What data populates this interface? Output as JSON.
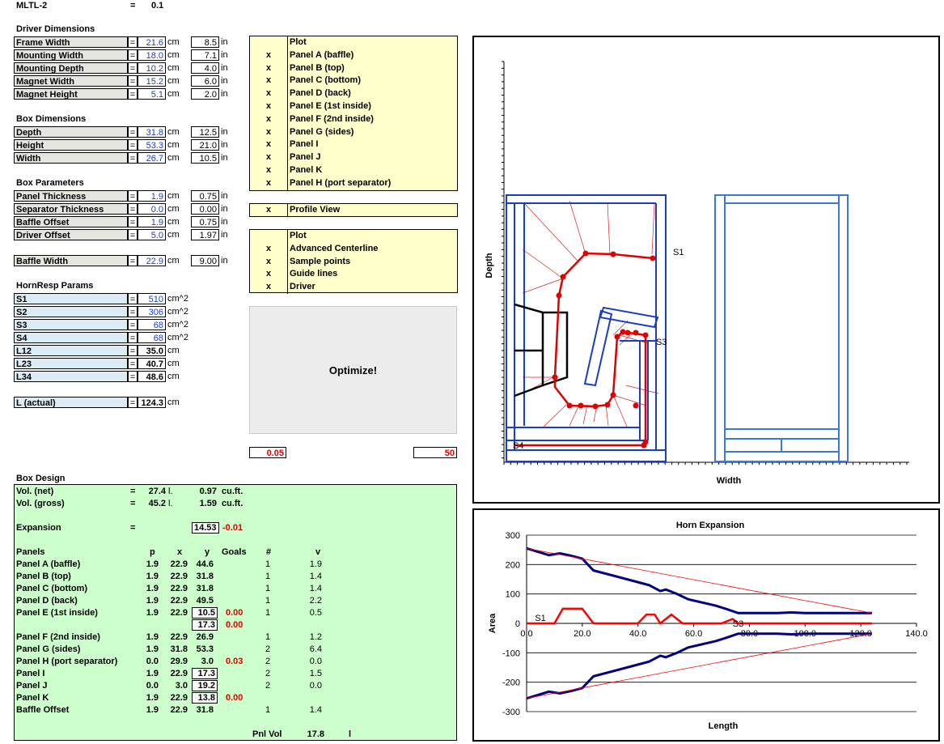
{
  "header": {
    "title": "MLTL-2",
    "eq": "=",
    "value": "0.1"
  },
  "driver": {
    "heading": "Driver Dimensions",
    "rows": [
      {
        "label": "Frame Width",
        "cm": "21.6",
        "in": "8.5"
      },
      {
        "label": "Mounting Width",
        "cm": "18.0",
        "in": "7.1"
      },
      {
        "label": "Mounting Depth",
        "cm": "10.2",
        "in": "4.0"
      },
      {
        "label": "Magnet Width",
        "cm": "15.2",
        "in": "6.0"
      },
      {
        "label": "Magnet Height",
        "cm": "5.1",
        "in": "2.0"
      }
    ]
  },
  "box_dims": {
    "heading": "Box Dimensions",
    "rows": [
      {
        "label": "Depth",
        "cm": "31.8",
        "in": "12.5"
      },
      {
        "label": "Height",
        "cm": "53.3",
        "in": "21.0"
      },
      {
        "label": "Width",
        "cm": "26.7",
        "in": "10.5"
      }
    ]
  },
  "box_params": {
    "heading": "Box Parameters",
    "rows": [
      {
        "label": "Panel Thickness",
        "cm": "1.9",
        "in": "0.75"
      },
      {
        "label": "Separator Thickness",
        "cm": "0.0",
        "in": "0.00"
      },
      {
        "label": "Baffle Offset",
        "cm": "1.9",
        "in": "0.75"
      },
      {
        "label": "Driver Offset",
        "cm": "5.0",
        "in": "1.97"
      }
    ],
    "baffle": {
      "label": "Baffle Width",
      "cm": "22.9",
      "in": "9.00"
    }
  },
  "units": {
    "cm": "cm",
    "in": "in",
    "eq": "="
  },
  "hornresp": {
    "heading": "HornResp Params",
    "rows": [
      {
        "label": "S1",
        "value": "510",
        "unit": "cm^2"
      },
      {
        "label": "S2",
        "value": "306",
        "unit": "cm^2"
      },
      {
        "label": "S3",
        "value": "68",
        "unit": "cm^2"
      },
      {
        "label": "S4",
        "value": "68",
        "unit": "cm^2"
      },
      {
        "label": "L12",
        "value": "35.0",
        "unit": "cm"
      },
      {
        "label": "L23",
        "value": "40.7",
        "unit": "cm"
      },
      {
        "label": "L34",
        "value": "48.6",
        "unit": "cm"
      }
    ],
    "l_actual": {
      "label": "L (actual)",
      "value": "124.3",
      "unit": "cm"
    }
  },
  "plot_panel": {
    "header": "Plot",
    "items": [
      {
        "x": "x",
        "label": "Panel A (baffle)"
      },
      {
        "x": "x",
        "label": "Panel B (top)"
      },
      {
        "x": "x",
        "label": "Panel C (bottom)"
      },
      {
        "x": "x",
        "label": "Panel D (back)"
      },
      {
        "x": "x",
        "label": "Panel E (1st inside)"
      },
      {
        "x": "x",
        "label": "Panel F (2nd inside)"
      },
      {
        "x": "x",
        "label": "Panel G (sides)"
      },
      {
        "x": "x",
        "label": "Panel I"
      },
      {
        "x": "x",
        "label": "Panel J"
      },
      {
        "x": "x",
        "label": "Panel K"
      },
      {
        "x": "x",
        "label": "Panel H (port separator)"
      }
    ]
  },
  "profile": {
    "x": "x",
    "label": "Profile View"
  },
  "plot_opts": {
    "header": "Plot",
    "items": [
      {
        "x": "x",
        "label": "Advanced Centerline"
      },
      {
        "x": "x",
        "label": "Sample points"
      },
      {
        "x": "x",
        "label": "Guide lines"
      },
      {
        "x": "x",
        "label": "Driver"
      }
    ]
  },
  "optimize": {
    "label": "Optimize!",
    "left_value": "0.05",
    "right_value": "50"
  },
  "box_design": {
    "heading": "Box Design",
    "vol_net": {
      "label": "Vol. (net)",
      "eq": "=",
      "l": "27.4",
      "lu": "l.",
      "cuft": "0.97",
      "cu": "cu.ft."
    },
    "vol_gross": {
      "label": "Vol. (gross)",
      "eq": "=",
      "l": "45.2",
      "lu": "l.",
      "cuft": "1.59",
      "cu": "cu.ft."
    },
    "expansion": {
      "label": "Expansion",
      "eq": "=",
      "value": "14.53",
      "delta": "-0.01"
    },
    "cols": {
      "name": "Panels",
      "p": "p",
      "x": "x",
      "y": "y",
      "goals": "Goals",
      "n": "#",
      "v": "v"
    },
    "rows": [
      {
        "name": "Panel A (baffle)",
        "p": "1.9",
        "x": "22.9",
        "y": "44.6",
        "goal": "",
        "n": "1",
        "v": "1.9"
      },
      {
        "name": "Panel B (top)",
        "p": "1.9",
        "x": "22.9",
        "y": "31.8",
        "goal": "",
        "n": "1",
        "v": "1.4"
      },
      {
        "name": "Panel C (bottom)",
        "p": "1.9",
        "x": "22.9",
        "y": "31.8",
        "goal": "",
        "n": "1",
        "v": "1.4"
      },
      {
        "name": "Panel D (back)",
        "p": "1.9",
        "x": "22.9",
        "y": "49.5",
        "goal": "",
        "n": "1",
        "v": "2.2"
      },
      {
        "name": "Panel E (1st inside)",
        "p": "1.9",
        "x": "22.9",
        "y": "10.5",
        "goal": "0.00",
        "n": "1",
        "v": "0.5"
      },
      {
        "name": "",
        "p": "",
        "x": "",
        "y": "17.3",
        "goal": "0.00",
        "n": "",
        "v": ""
      },
      {
        "name": "Panel F (2nd inside)",
        "p": "1.9",
        "x": "22.9",
        "y": "26.9",
        "goal": "",
        "n": "1",
        "v": "1.2"
      },
      {
        "name": "Panel G (sides)",
        "p": "1.9",
        "x": "31.8",
        "y": "53.3",
        "goal": "",
        "n": "2",
        "v": "6.4"
      },
      {
        "name": "Panel H (port separator)",
        "p": "0.0",
        "x": "29.9",
        "y": "3.0",
        "goal": "0.03",
        "n": "2",
        "v": "0.0"
      },
      {
        "name": "Panel I",
        "p": "1.9",
        "x": "22.9",
        "y": "17.3",
        "goal": "",
        "n": "2",
        "v": "1.5"
      },
      {
        "name": "Panel J",
        "p": "0.0",
        "x": "3.0",
        "y": "19.2",
        "goal": "",
        "n": "2",
        "v": "0.0"
      },
      {
        "name": "Panel K",
        "p": "1.9",
        "x": "22.9",
        "y": "13.8",
        "goal": "0.00",
        "n": "",
        "v": ""
      },
      {
        "name": "Baffle Offset",
        "p": "1.9",
        "x": "22.9",
        "y": "31.8",
        "goal": "",
        "n": "1",
        "v": "1.4"
      }
    ],
    "pnl_vol": {
      "label": "Pnl Vol",
      "value": "17.8",
      "unit": "l"
    }
  },
  "profile_chart": {
    "ylabel": "Depth",
    "xlabel": "Width",
    "s1": "S1",
    "s3": "S3",
    "s4": "S4"
  },
  "chart_data": {
    "type": "line",
    "title": "Horn Expansion",
    "xlabel": "Length",
    "ylabel": "Area",
    "xlim": [
      0,
      140
    ],
    "ylim": [
      -300,
      300
    ],
    "xticks": [
      "0.0",
      "20.0",
      "40.0",
      "60.0",
      "80.0",
      "100.0",
      "120.0",
      "140.0"
    ],
    "yticks": [
      "300",
      "200",
      "100",
      "0",
      "-100",
      "-200",
      "-300"
    ],
    "annotations": [
      "S1",
      "S3"
    ],
    "series": [
      {
        "color": "#000080",
        "x": [
          0,
          8,
          12,
          16,
          20,
          24,
          40,
          44,
          48,
          50,
          54,
          58,
          68,
          72,
          76,
          90,
          95,
          100,
          124
        ],
        "y": [
          255,
          232,
          238,
          230,
          220,
          180,
          140,
          130,
          110,
          115,
          100,
          82,
          60,
          48,
          35,
          35,
          37,
          35,
          35
        ]
      },
      {
        "color": "#000080",
        "x": [
          0,
          8,
          12,
          16,
          20,
          24,
          40,
          44,
          48,
          50,
          54,
          58,
          68,
          72,
          76,
          90,
          95,
          100,
          124
        ],
        "y": [
          -255,
          -232,
          -238,
          -230,
          -220,
          -180,
          -140,
          -130,
          -110,
          -115,
          -100,
          -82,
          -60,
          -48,
          -35,
          -35,
          -37,
          -35,
          -35
        ]
      },
      {
        "color": "#ff0000",
        "x": [
          0,
          10,
          13,
          20,
          24,
          30,
          40,
          43,
          46,
          48,
          52,
          56,
          62,
          70,
          74,
          76,
          82,
          124
        ],
        "y": [
          0,
          0,
          50,
          50,
          0,
          0,
          0,
          30,
          30,
          0,
          30,
          0,
          0,
          0,
          15,
          0,
          0,
          0
        ]
      },
      {
        "color": "#ff0000",
        "x": [
          0,
          124
        ],
        "y": [
          255,
          35
        ]
      },
      {
        "color": "#ff0000",
        "x": [
          0,
          124
        ],
        "y": [
          -255,
          -35
        ]
      }
    ]
  }
}
